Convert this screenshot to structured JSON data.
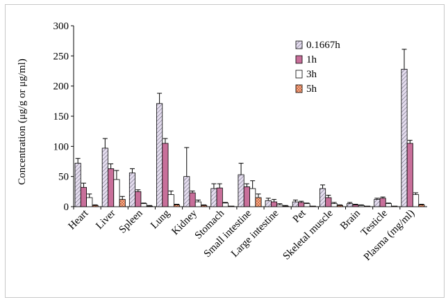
{
  "chart_data": {
    "type": "bar",
    "ylabel": "Concentration (μg/g or μg/ml)",
    "xlabel": "",
    "ylim": [
      0,
      300
    ],
    "yticks": [
      0,
      50,
      100,
      150,
      200,
      250,
      300
    ],
    "categories": [
      "Heart",
      "Liver",
      "Spleen",
      "Lung",
      "Kidney",
      "Stomach",
      "Small intestine",
      "Large intestine",
      "Pet",
      "Skeletal muscle",
      "Brain",
      "Testicle",
      "Plasma (mg/ml)"
    ],
    "series": [
      {
        "name": "0.1667h",
        "pattern": "hatch",
        "values": [
          72,
          97,
          56,
          171,
          50,
          30,
          53,
          10,
          8,
          30,
          5,
          12,
          228
        ],
        "errors": [
          8,
          16,
          7,
          17,
          48,
          8,
          19,
          4,
          3,
          6,
          2,
          2,
          33
        ]
      },
      {
        "name": "1h",
        "pattern": "solid",
        "values": [
          32,
          63,
          25,
          105,
          23,
          31,
          33,
          8,
          7,
          15,
          3,
          14,
          105
        ],
        "errors": [
          7,
          8,
          3,
          8,
          3,
          7,
          5,
          4,
          2,
          4,
          1,
          2,
          5
        ]
      },
      {
        "name": "3h",
        "pattern": "white",
        "values": [
          15,
          45,
          5,
          20,
          8,
          6,
          30,
          3,
          5,
          5,
          2,
          5,
          20
        ],
        "errors": [
          6,
          15,
          1,
          6,
          3,
          1,
          13,
          2,
          1,
          2,
          1,
          1,
          3
        ]
      },
      {
        "name": "5h",
        "pattern": "cross",
        "values": [
          2,
          12,
          1,
          3,
          2,
          1,
          15,
          1,
          1,
          2,
          1,
          1,
          3
        ],
        "errors": [
          1,
          5,
          1,
          1,
          1,
          0,
          6,
          1,
          0,
          1,
          0,
          0,
          1
        ]
      }
    ],
    "colors": {
      "hatch_bg": "#e4dcee",
      "hatch_line": "#5a5a6a",
      "solid": "#c86f9a",
      "white": "#ffffff",
      "cross_bg": "#f6cf9e",
      "cross_line": "#d0503a"
    },
    "legend_position": "top-right",
    "grid": false
  }
}
